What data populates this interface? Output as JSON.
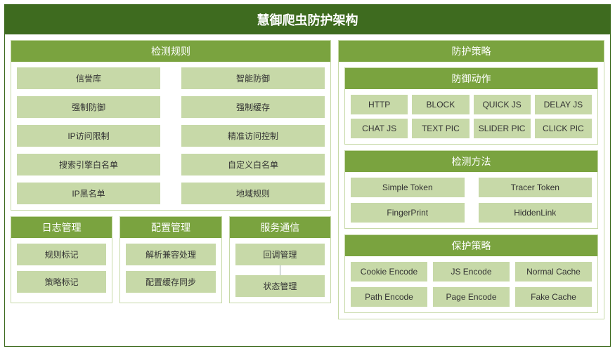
{
  "colors": {
    "header_bg": "#3e6b1f",
    "panel_header_bg": "#7aa33f",
    "item_bg": "#c7d9a8",
    "border": "#c7d9a8",
    "text_light": "#ffffff",
    "text_dark": "#333333"
  },
  "title": "慧御爬虫防护架构",
  "detection_rules": {
    "header": "检测规则",
    "left": [
      "信誉库",
      "强制防御",
      "IP访问限制",
      "搜索引擎白名单",
      "IP黑名单"
    ],
    "right": [
      "智能防御",
      "强制缓存",
      "精准访问控制",
      "自定义白名单",
      "地域规则"
    ]
  },
  "log_mgmt": {
    "header": "日志管理",
    "items": [
      "规则标记",
      "策略标记"
    ]
  },
  "config_mgmt": {
    "header": "配置管理",
    "items": [
      "解析兼容处理",
      "配置缓存同步"
    ]
  },
  "service_comm": {
    "header": "服务通信",
    "items": [
      "回调管理",
      "状态管理"
    ]
  },
  "defense_strategy": {
    "header": "防护策略",
    "actions": {
      "header": "防御动作",
      "items": [
        "HTTP",
        "BLOCK",
        "QUICK JS",
        "DELAY JS",
        "CHAT JS",
        "TEXT PIC",
        "SLIDER PIC",
        "CLICK PIC"
      ]
    },
    "methods": {
      "header": "检测方法",
      "items": [
        "Simple Token",
        "Tracer Token",
        "FingerPrint",
        "HiddenLink"
      ]
    },
    "protect": {
      "header": "保护策略",
      "items": [
        "Cookie Encode",
        "JS Encode",
        "Normal Cache",
        "Path Encode",
        "Page Encode",
        "Fake Cache"
      ]
    }
  }
}
